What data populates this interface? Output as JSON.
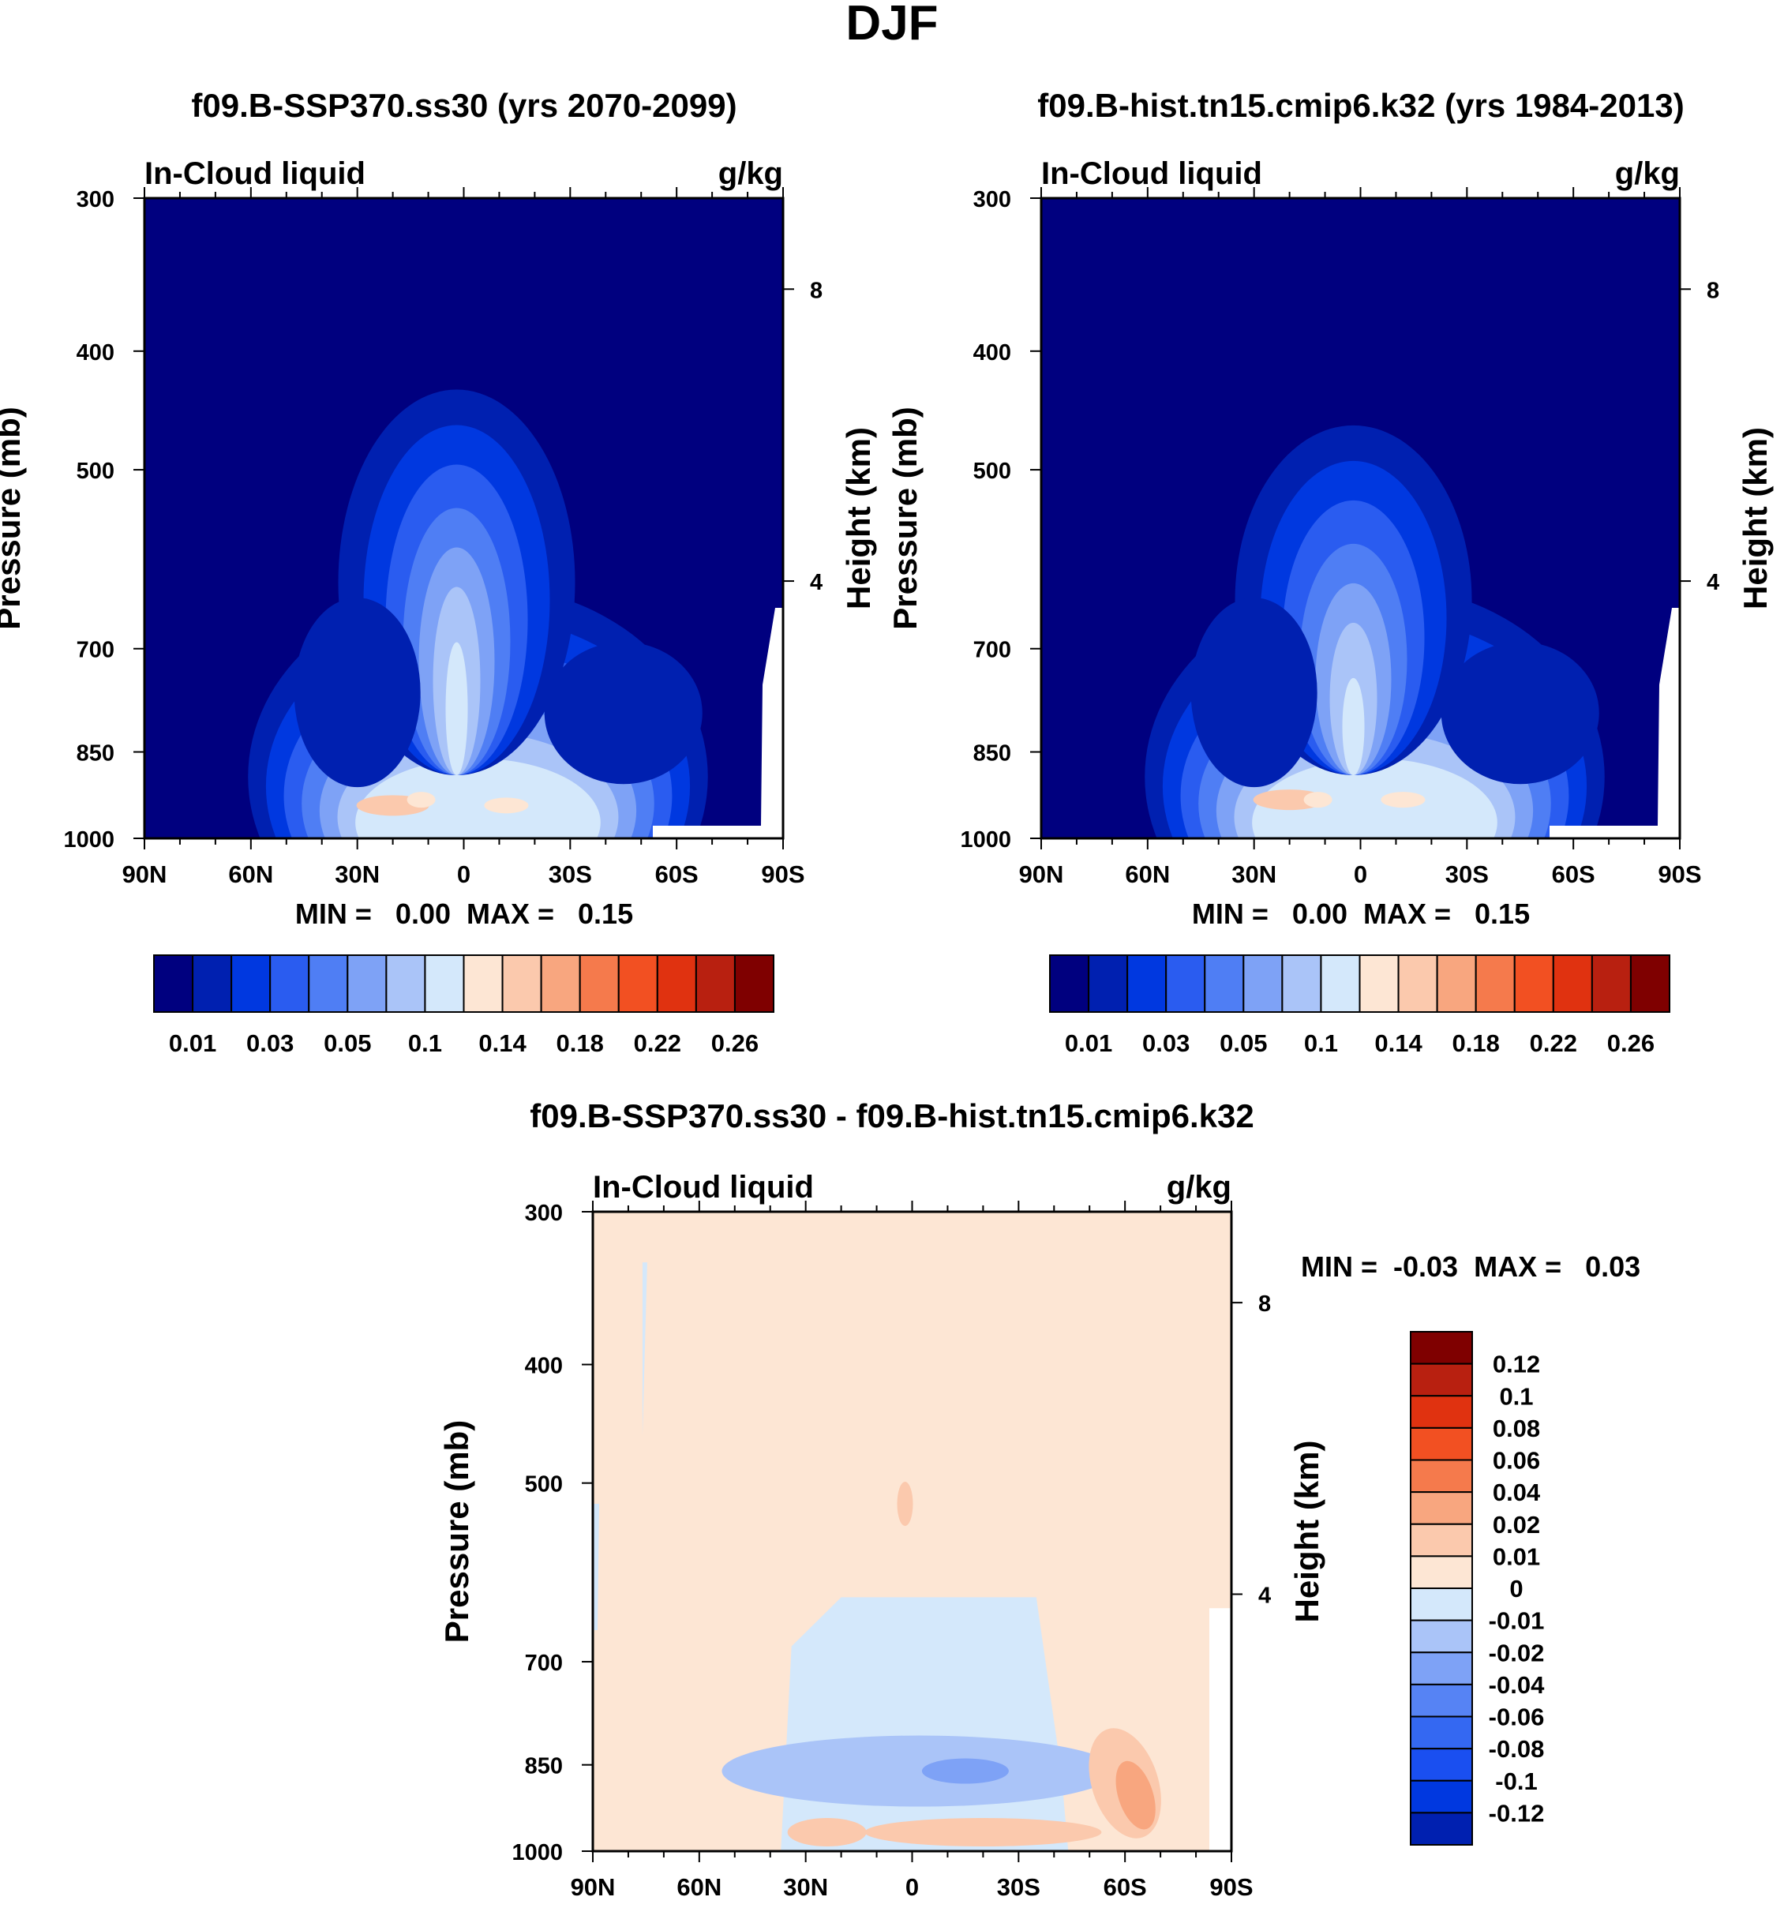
{
  "figure_title": "DJF",
  "colors": {
    "abs_palette": [
      "#00007f",
      "#0020b0",
      "#0038e0",
      "#2a5cf0",
      "#4f7ef4",
      "#7ea2f6",
      "#aac4f8",
      "#d4e8fb",
      "#fde6d4",
      "#fbc9ad",
      "#f8a67f",
      "#f57a4c",
      "#f25022",
      "#e03210",
      "#b82010",
      "#7f0000"
    ],
    "diff_palette": [
      "#00007f",
      "#0020b0",
      "#0038e0",
      "#1a4ff0",
      "#3468f2",
      "#5683f4",
      "#7ea2f6",
      "#aac4f8",
      "#d4e8fb",
      "#fde6d4",
      "#fbc9ad",
      "#f8a67f",
      "#f57a4c",
      "#f25022",
      "#e03210",
      "#b82010",
      "#7f0000"
    ]
  },
  "chart_data": [
    {
      "type": "heatmap",
      "title": "f09.B-SSP370.ss30 (yrs 2070-2099)",
      "left_string": "In-Cloud liquid",
      "right_string": "g/kg",
      "ylabel": "Pressure (mb)",
      "ylabel_right": "Height (km)",
      "x_tick_labels": [
        "90N",
        "60N",
        "30N",
        "0",
        "30S",
        "60S",
        "90S"
      ],
      "x_tick_values": [
        90,
        60,
        30,
        0,
        -30,
        -60,
        -90
      ],
      "y_tick_labels": [
        "300",
        "400",
        "500",
        "700",
        "850",
        "1000"
      ],
      "y_tick_values": [
        300,
        400,
        500,
        700,
        850,
        1000
      ],
      "y_right_tick_labels": [
        "8",
        "4"
      ],
      "y_right_tick_values": [
        8,
        4
      ],
      "stats_text": "MIN =   0.00  MAX =   0.15",
      "min": 0.0,
      "max": 0.15,
      "colorbar": {
        "levels": [
          0.01,
          0.02,
          0.03,
          0.04,
          0.05,
          0.07,
          0.1,
          0.12,
          0.14,
          0.16,
          0.18,
          0.2,
          0.22,
          0.24,
          0.26
        ],
        "labels": [
          "0.01",
          "0.03",
          "0.05",
          "0.1",
          "0.14",
          "0.18",
          "0.22",
          "0.26"
        ]
      },
      "features": [
        {
          "name": "tropical plume",
          "lat": 2,
          "top_pressure": 430,
          "peak_value": 0.1
        },
        {
          "name": "low-level maximum",
          "lat": 20,
          "pressure": 940,
          "value": 0.15
        }
      ]
    },
    {
      "type": "heatmap",
      "title": "f09.B-hist.tn15.cmip6.k32 (yrs 1984-2013)",
      "left_string": "In-Cloud liquid",
      "right_string": "g/kg",
      "ylabel": "Pressure (mb)",
      "ylabel_right": "Height (km)",
      "x_tick_labels": [
        "90N",
        "60N",
        "30N",
        "0",
        "30S",
        "60S",
        "90S"
      ],
      "x_tick_values": [
        90,
        60,
        30,
        0,
        -30,
        -60,
        -90
      ],
      "y_tick_labels": [
        "300",
        "400",
        "500",
        "700",
        "850",
        "1000"
      ],
      "y_tick_values": [
        300,
        400,
        500,
        700,
        850,
        1000
      ],
      "y_right_tick_labels": [
        "8",
        "4"
      ],
      "y_right_tick_values": [
        8,
        4
      ],
      "stats_text": "MIN =   0.00  MAX =   0.15",
      "min": 0.0,
      "max": 0.15,
      "colorbar": {
        "levels": [
          0.01,
          0.02,
          0.03,
          0.04,
          0.05,
          0.07,
          0.1,
          0.12,
          0.14,
          0.16,
          0.18,
          0.2,
          0.22,
          0.24,
          0.26
        ],
        "labels": [
          "0.01",
          "0.03",
          "0.05",
          "0.1",
          "0.14",
          "0.18",
          "0.22",
          "0.26"
        ]
      },
      "features": [
        {
          "name": "tropical plume",
          "lat": 2,
          "top_pressure": 460,
          "peak_value": 0.1
        },
        {
          "name": "low-level maximum",
          "lat": 20,
          "pressure": 930,
          "value": 0.15
        }
      ]
    },
    {
      "type": "heatmap",
      "title": "f09.B-SSP370.ss30 - f09.B-hist.tn15.cmip6.k32",
      "left_string": "In-Cloud liquid",
      "right_string": "g/kg",
      "ylabel": "Pressure (mb)",
      "ylabel_right": "Height (km)",
      "x_tick_labels": [
        "90N",
        "60N",
        "30N",
        "0",
        "30S",
        "60S",
        "90S"
      ],
      "x_tick_values": [
        90,
        60,
        30,
        0,
        -30,
        -60,
        -90
      ],
      "y_tick_labels": [
        "300",
        "400",
        "500",
        "700",
        "850",
        "1000"
      ],
      "y_tick_values": [
        300,
        400,
        500,
        700,
        850,
        1000
      ],
      "y_right_tick_labels": [
        "8",
        "4"
      ],
      "y_right_tick_values": [
        8,
        4
      ],
      "stats_text": "MIN =  -0.03  MAX =   0.03",
      "min": -0.03,
      "max": 0.03,
      "colorbar": {
        "levels": [
          -0.12,
          -0.1,
          -0.08,
          -0.06,
          -0.04,
          -0.02,
          -0.01,
          0,
          0.01,
          0.02,
          0.04,
          0.06,
          0.08,
          0.1,
          0.12
        ],
        "labels": [
          "0.12",
          "0.1",
          "0.08",
          "0.06",
          "0.04",
          "0.02",
          "0.01",
          "0",
          "-0.01",
          "-0.02",
          "-0.04",
          "-0.06",
          "-0.08",
          "-0.1",
          "-0.12"
        ]
      },
      "features": [
        {
          "name": "negative region",
          "lat_range": [
            35,
            -40
          ],
          "pressure_range": [
            620,
            980
          ],
          "value": -0.01
        },
        {
          "name": "negative core",
          "lat": -15,
          "pressure": 860,
          "value": -0.03
        },
        {
          "name": "positive region",
          "lat": -60,
          "pressure": 880,
          "value": 0.03
        }
      ]
    }
  ]
}
